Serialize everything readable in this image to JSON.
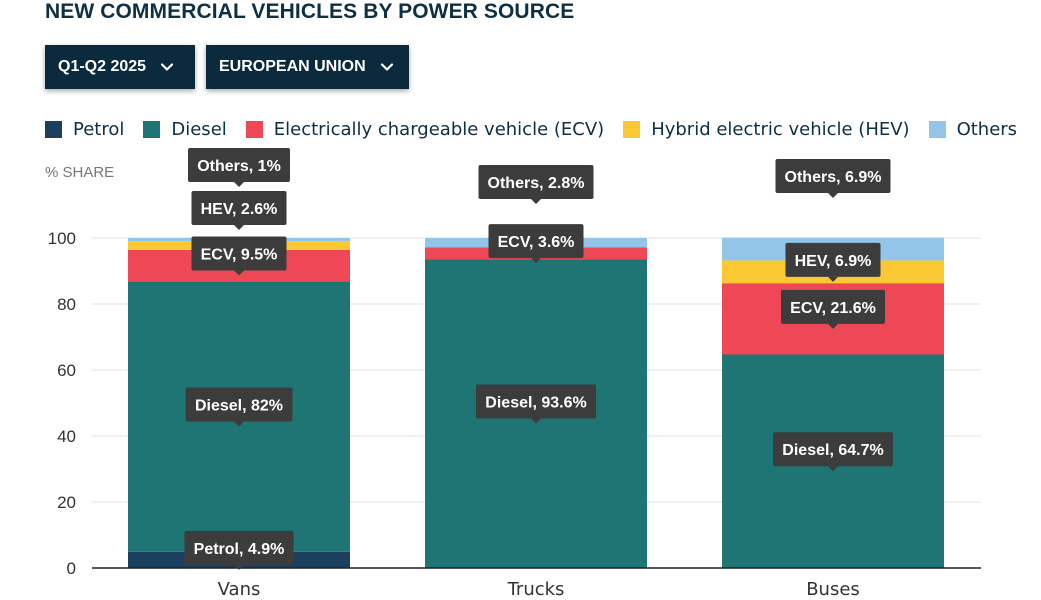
{
  "title": "NEW COMMERCIAL VEHICLES BY POWER SOURCE",
  "filters": {
    "period": "Q1-Q2 2025",
    "region": "EUROPEAN UNION",
    "icon": "chevron-down-icon"
  },
  "colors": {
    "petrol": "#1d3f5e",
    "diesel": "#1e7574",
    "ecv": "#ee4755",
    "hev": "#fac832",
    "others": "#92c5e8",
    "tooltip": "#3c3c3c"
  },
  "legend": [
    {
      "key": "petrol",
      "label": "Petrol"
    },
    {
      "key": "diesel",
      "label": "Diesel"
    },
    {
      "key": "ecv",
      "label": "Electrically chargeable vehicle (ECV)"
    },
    {
      "key": "hev",
      "label": "Hybrid electric vehicle (HEV)"
    },
    {
      "key": "others",
      "label": "Others"
    }
  ],
  "chart_data": {
    "type": "bar",
    "stacked": true,
    "title": "NEW COMMERCIAL VEHICLES BY POWER SOURCE",
    "xlabel": "",
    "ylabel": "% SHARE",
    "ylim": [
      0,
      100
    ],
    "yticks": [
      0,
      20,
      40,
      60,
      80,
      100
    ],
    "grid": true,
    "legend_position": "top",
    "categories": [
      "Vans",
      "Trucks",
      "Buses"
    ],
    "series": [
      {
        "key": "petrol",
        "name": "Petrol",
        "label": "Petrol",
        "values": [
          4.9,
          0,
          0
        ]
      },
      {
        "key": "diesel",
        "name": "Diesel",
        "label": "Diesel",
        "values": [
          82,
          93.6,
          64.7
        ]
      },
      {
        "key": "ecv",
        "name": "Electrically chargeable vehicle (ECV)",
        "label": "ECV",
        "values": [
          9.5,
          3.6,
          21.6
        ]
      },
      {
        "key": "hev",
        "name": "Hybrid electric vehicle (HEV)",
        "label": "HEV",
        "values": [
          2.6,
          0,
          6.9
        ]
      },
      {
        "key": "others",
        "name": "Others",
        "label": "Others",
        "values": [
          1,
          2.8,
          6.9
        ]
      }
    ],
    "annotations": [
      {
        "category": "Vans",
        "series": "petrol",
        "text": "Petrol, 4.9%"
      },
      {
        "category": "Vans",
        "series": "diesel",
        "text": "Diesel, 82%"
      },
      {
        "category": "Vans",
        "series": "ecv",
        "text": "ECV, 9.5%"
      },
      {
        "category": "Vans",
        "series": "hev",
        "text": "HEV, 2.6%"
      },
      {
        "category": "Vans",
        "series": "others",
        "text": "Others, 1%"
      },
      {
        "category": "Trucks",
        "series": "diesel",
        "text": "Diesel, 93.6%"
      },
      {
        "category": "Trucks",
        "series": "ecv",
        "text": "ECV, 3.6%"
      },
      {
        "category": "Trucks",
        "series": "others",
        "text": "Others, 2.8%"
      },
      {
        "category": "Buses",
        "series": "diesel",
        "text": "Diesel, 64.7%"
      },
      {
        "category": "Buses",
        "series": "ecv",
        "text": "ECV, 21.6%"
      },
      {
        "category": "Buses",
        "series": "hev",
        "text": "HEV, 6.9%"
      },
      {
        "category": "Buses",
        "series": "others",
        "text": "Others, 6.9%"
      }
    ]
  }
}
